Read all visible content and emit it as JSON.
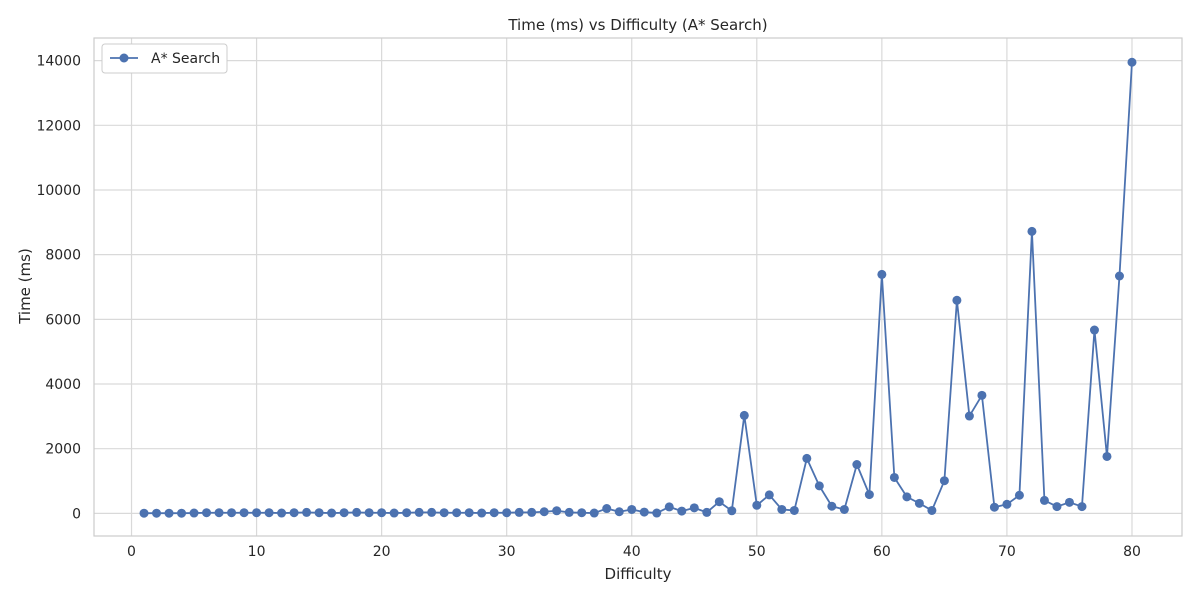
{
  "chart_data": {
    "type": "line",
    "title": "Time (ms) vs Difficulty (A* Search)",
    "xlabel": "Difficulty",
    "ylabel": "Time (ms)",
    "xlim": [
      -3,
      84
    ],
    "ylim": [
      -700,
      14700
    ],
    "xticks": [
      0,
      10,
      20,
      30,
      40,
      50,
      60,
      70,
      80
    ],
    "yticks": [
      0,
      2000,
      4000,
      6000,
      8000,
      10000,
      12000,
      14000
    ],
    "grid": true,
    "legend_position": "top-left",
    "line_color": "#4c72b0",
    "series": [
      {
        "name": "A* Search",
        "x": [
          1,
          2,
          3,
          4,
          5,
          6,
          7,
          8,
          9,
          10,
          11,
          12,
          13,
          14,
          15,
          16,
          17,
          18,
          19,
          20,
          21,
          22,
          23,
          24,
          25,
          26,
          27,
          28,
          29,
          30,
          31,
          32,
          33,
          34,
          35,
          36,
          37,
          38,
          39,
          40,
          41,
          42,
          43,
          44,
          45,
          46,
          47,
          48,
          49,
          50,
          51,
          52,
          53,
          54,
          55,
          56,
          57,
          58,
          59,
          60,
          61,
          62,
          63,
          64,
          65,
          66,
          67,
          68,
          69,
          70,
          71,
          72,
          73,
          74,
          75,
          76,
          77,
          78,
          79,
          80
        ],
        "y": [
          5,
          5,
          5,
          5,
          10,
          20,
          20,
          20,
          20,
          20,
          20,
          10,
          20,
          30,
          20,
          10,
          20,
          30,
          20,
          20,
          10,
          20,
          30,
          30,
          20,
          20,
          20,
          10,
          20,
          20,
          30,
          30,
          50,
          80,
          30,
          20,
          10,
          150,
          50,
          120,
          40,
          10,
          200,
          70,
          170,
          30,
          360,
          80,
          3030,
          250,
          570,
          120,
          90,
          1700,
          850,
          220,
          120,
          1510,
          580,
          7390,
          1110,
          510,
          310,
          90,
          1010,
          6590,
          3010,
          3650,
          190,
          280,
          560,
          8720,
          400,
          210,
          340,
          210,
          5670,
          1760,
          7340,
          13950
        ]
      }
    ]
  }
}
